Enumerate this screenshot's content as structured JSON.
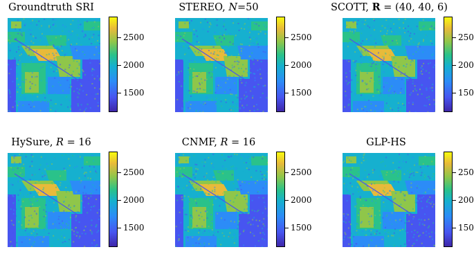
{
  "colormap": [
    "#3e26a8",
    "#4755f0",
    "#2c8cf7",
    "#16b0cf",
    "#2ac28a",
    "#8fc64a",
    "#e8ba3a",
    "#f9fb0e"
  ],
  "colorbar": {
    "min": 1150,
    "max": 2850,
    "ticks": [
      "1500",
      "2000",
      "2500"
    ]
  },
  "panels": [
    {
      "title_text": "Groundtruth SRI",
      "title_prefix": "",
      "title_var": "",
      "title_suffix": ""
    },
    {
      "title_text": "",
      "title_prefix": "STEREO, ",
      "title_var": "N",
      "title_suffix": "=50"
    },
    {
      "title_text": "",
      "title_prefix": "SCOTT, ",
      "title_bold": "R",
      "title_suffix": " = (40, 40, 6)"
    },
    {
      "title_text": "",
      "title_prefix": "HySure, ",
      "title_var": "R",
      "title_suffix": " = 16"
    },
    {
      "title_text": "",
      "title_prefix": "CNMF, ",
      "title_var": "R",
      "title_suffix": " = 16"
    },
    {
      "title_text": "GLP-HS",
      "title_prefix": "",
      "title_var": "",
      "title_suffix": ""
    }
  ]
}
